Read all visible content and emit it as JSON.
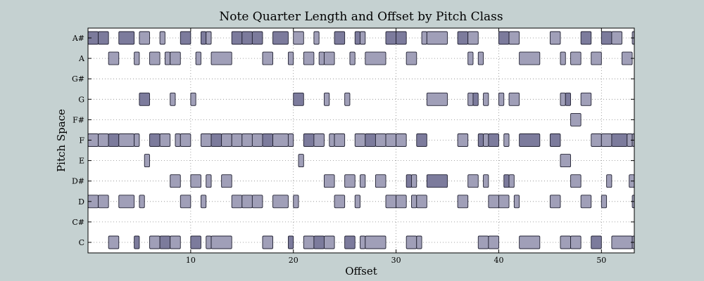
{
  "chart_data": {
    "type": "broken_barh",
    "title": "Note Quarter Length and Offset by Pitch Class",
    "xlabel": "Offset",
    "ylabel": "Pitch Space",
    "xlim": [
      0,
      53.2
    ],
    "x_ticks": [
      10,
      20,
      30,
      40,
      50
    ],
    "categories": [
      "C",
      "C#",
      "D",
      "D#",
      "E",
      "F",
      "F#",
      "G",
      "G#",
      "A",
      "A#"
    ],
    "grid": true,
    "colors": {
      "light": "#a09fb8",
      "dark": "#7c7b9c",
      "edge": "#222233",
      "plot_bg": "#ffffff",
      "figure_bg": "#c5d1d1",
      "grid": "#888888"
    },
    "series": [
      {
        "pitch": "C",
        "notes": [
          [
            2,
            1,
            "l"
          ],
          [
            4.5,
            0.5,
            "d"
          ],
          [
            6,
            1,
            "l"
          ],
          [
            7,
            1,
            "d"
          ],
          [
            8,
            1,
            "l"
          ],
          [
            10,
            1,
            "d"
          ],
          [
            11.5,
            0.5,
            "l"
          ],
          [
            12,
            2,
            "l"
          ],
          [
            17,
            1,
            "l"
          ],
          [
            19.5,
            0.5,
            "d"
          ],
          [
            21,
            1,
            "l"
          ],
          [
            22,
            1,
            "d"
          ],
          [
            23,
            1,
            "l"
          ],
          [
            25,
            1,
            "d"
          ],
          [
            26.5,
            0.5,
            "l"
          ],
          [
            27,
            2,
            "l"
          ],
          [
            31,
            1,
            "l"
          ],
          [
            32,
            0.5,
            "l"
          ],
          [
            38,
            1,
            "l"
          ],
          [
            39,
            1,
            "l"
          ],
          [
            42,
            2,
            "l"
          ],
          [
            46,
            1,
            "l"
          ],
          [
            47,
            1,
            "l"
          ],
          [
            49,
            1,
            "d"
          ],
          [
            51,
            2,
            "l"
          ],
          [
            53,
            0.2,
            "l"
          ]
        ]
      },
      {
        "pitch": "D",
        "notes": [
          [
            0,
            1,
            "l"
          ],
          [
            1,
            1,
            "l"
          ],
          [
            3,
            1.5,
            "l"
          ],
          [
            5,
            0.5,
            "l"
          ],
          [
            9,
            1,
            "l"
          ],
          [
            11,
            0.5,
            "l"
          ],
          [
            14,
            1,
            "l"
          ],
          [
            15,
            1,
            "l"
          ],
          [
            16,
            1,
            "l"
          ],
          [
            18,
            1.5,
            "l"
          ],
          [
            20,
            0.5,
            "l"
          ],
          [
            24,
            1,
            "l"
          ],
          [
            26,
            0.5,
            "l"
          ],
          [
            29,
            1,
            "l"
          ],
          [
            30,
            1,
            "l"
          ],
          [
            31.5,
            0.5,
            "l"
          ],
          [
            32,
            1,
            "l"
          ],
          [
            36,
            1,
            "l"
          ],
          [
            39,
            1,
            "l"
          ],
          [
            40,
            1,
            "l"
          ],
          [
            41.5,
            0.5,
            "l"
          ],
          [
            45,
            1,
            "l"
          ],
          [
            48,
            1,
            "l"
          ],
          [
            50,
            0.5,
            "l"
          ],
          [
            53,
            0.2,
            "l"
          ]
        ]
      },
      {
        "pitch": "D#",
        "notes": [
          [
            8,
            1,
            "l"
          ],
          [
            10,
            1,
            "l"
          ],
          [
            11.5,
            0.5,
            "l"
          ],
          [
            13,
            1,
            "l"
          ],
          [
            23,
            1,
            "l"
          ],
          [
            25,
            1,
            "l"
          ],
          [
            26.5,
            0.5,
            "l"
          ],
          [
            28,
            1,
            "l"
          ],
          [
            31,
            0.5,
            "d"
          ],
          [
            31.5,
            0.5,
            "l"
          ],
          [
            33,
            2,
            "d"
          ],
          [
            37,
            1,
            "l"
          ],
          [
            38.5,
            0.5,
            "l"
          ],
          [
            40.5,
            0.5,
            "d"
          ],
          [
            41,
            0.5,
            "l"
          ],
          [
            47,
            1,
            "l"
          ],
          [
            50.5,
            0.5,
            "l"
          ],
          [
            52.7,
            0.5,
            "l"
          ]
        ]
      },
      {
        "pitch": "E",
        "notes": [
          [
            5.5,
            0.5,
            "l"
          ],
          [
            20.5,
            0.5,
            "l"
          ],
          [
            46,
            1,
            "l"
          ]
        ]
      },
      {
        "pitch": "F",
        "notes": [
          [
            0,
            1,
            "l"
          ],
          [
            1,
            1,
            "l"
          ],
          [
            2,
            1,
            "d"
          ],
          [
            3,
            1.5,
            "l"
          ],
          [
            4.5,
            0.5,
            "l"
          ],
          [
            6,
            1,
            "d"
          ],
          [
            7,
            1,
            "l"
          ],
          [
            8.5,
            0.5,
            "l"
          ],
          [
            9,
            1,
            "l"
          ],
          [
            11,
            1,
            "l"
          ],
          [
            12,
            1,
            "d"
          ],
          [
            13,
            1,
            "l"
          ],
          [
            14,
            1,
            "l"
          ],
          [
            15,
            1,
            "l"
          ],
          [
            16,
            1,
            "l"
          ],
          [
            17,
            1,
            "d"
          ],
          [
            18,
            1.5,
            "l"
          ],
          [
            19.5,
            0.5,
            "l"
          ],
          [
            21,
            1,
            "d"
          ],
          [
            22,
            1,
            "l"
          ],
          [
            23.5,
            0.5,
            "l"
          ],
          [
            24,
            1,
            "l"
          ],
          [
            26,
            1,
            "l"
          ],
          [
            27,
            1,
            "d"
          ],
          [
            28,
            1,
            "l"
          ],
          [
            29,
            1,
            "l"
          ],
          [
            30,
            1,
            "l"
          ],
          [
            32,
            1,
            "d"
          ],
          [
            36,
            1,
            "l"
          ],
          [
            38,
            0.5,
            "d"
          ],
          [
            38.5,
            0.5,
            "l"
          ],
          [
            39,
            1,
            "d"
          ],
          [
            40.5,
            0.5,
            "l"
          ],
          [
            42,
            2,
            "d"
          ],
          [
            45,
            1,
            "d"
          ],
          [
            49,
            1,
            "l"
          ],
          [
            50,
            1,
            "l"
          ],
          [
            51,
            1.5,
            "d"
          ],
          [
            52.5,
            0.5,
            "l"
          ],
          [
            53,
            0.2,
            "l"
          ]
        ]
      },
      {
        "pitch": "F#",
        "notes": [
          [
            47,
            1,
            "l"
          ]
        ]
      },
      {
        "pitch": "G",
        "notes": [
          [
            5,
            1,
            "d"
          ],
          [
            8,
            0.5,
            "l"
          ],
          [
            10,
            0.5,
            "l"
          ],
          [
            20,
            1,
            "d"
          ],
          [
            23,
            0.5,
            "l"
          ],
          [
            25,
            0.5,
            "l"
          ],
          [
            33,
            2,
            "l"
          ],
          [
            37,
            0.5,
            "l"
          ],
          [
            37.5,
            0.5,
            "d"
          ],
          [
            38.5,
            0.5,
            "l"
          ],
          [
            40,
            0.5,
            "l"
          ],
          [
            41,
            1,
            "l"
          ],
          [
            46,
            0.5,
            "l"
          ],
          [
            46.5,
            0.5,
            "d"
          ],
          [
            48,
            1,
            "l"
          ]
        ]
      },
      {
        "pitch": "G#",
        "notes": []
      },
      {
        "pitch": "A",
        "notes": [
          [
            2,
            1,
            "l"
          ],
          [
            4.5,
            0.5,
            "l"
          ],
          [
            6,
            1,
            "l"
          ],
          [
            7.5,
            0.5,
            "l"
          ],
          [
            8,
            1,
            "l"
          ],
          [
            10.5,
            0.5,
            "l"
          ],
          [
            12,
            2,
            "l"
          ],
          [
            17,
            1,
            "l"
          ],
          [
            19.5,
            0.5,
            "l"
          ],
          [
            21,
            1,
            "l"
          ],
          [
            22.5,
            0.5,
            "l"
          ],
          [
            23,
            1,
            "l"
          ],
          [
            25.5,
            0.5,
            "l"
          ],
          [
            27,
            2,
            "l"
          ],
          [
            31,
            1,
            "l"
          ],
          [
            37,
            0.5,
            "l"
          ],
          [
            38,
            0.5,
            "l"
          ],
          [
            42,
            2,
            "l"
          ],
          [
            46,
            0.5,
            "l"
          ],
          [
            47,
            1,
            "l"
          ],
          [
            49,
            1,
            "l"
          ],
          [
            52,
            1,
            "l"
          ]
        ]
      },
      {
        "pitch": "A#",
        "notes": [
          [
            0,
            1,
            "d"
          ],
          [
            1,
            1,
            "d"
          ],
          [
            3,
            1.5,
            "d"
          ],
          [
            5,
            1,
            "l"
          ],
          [
            7,
            0.5,
            "l"
          ],
          [
            9,
            1,
            "d"
          ],
          [
            11,
            0.5,
            "d"
          ],
          [
            11.5,
            0.5,
            "l"
          ],
          [
            14,
            1,
            "d"
          ],
          [
            15,
            1,
            "d"
          ],
          [
            16,
            1,
            "d"
          ],
          [
            18,
            1.5,
            "d"
          ],
          [
            20,
            1,
            "l"
          ],
          [
            22,
            0.5,
            "l"
          ],
          [
            24,
            1,
            "d"
          ],
          [
            26,
            0.5,
            "d"
          ],
          [
            26.5,
            0.5,
            "l"
          ],
          [
            29,
            1,
            "d"
          ],
          [
            30,
            1,
            "d"
          ],
          [
            32.5,
            0.5,
            "l"
          ],
          [
            33,
            2,
            "l"
          ],
          [
            36,
            1,
            "d"
          ],
          [
            37,
            1,
            "l"
          ],
          [
            40,
            1,
            "d"
          ],
          [
            41,
            1,
            "l"
          ],
          [
            45,
            1,
            "l"
          ],
          [
            48,
            1,
            "d"
          ],
          [
            50,
            1,
            "d"
          ],
          [
            51,
            1,
            "l"
          ],
          [
            53,
            0.2,
            "l"
          ]
        ]
      }
    ]
  }
}
